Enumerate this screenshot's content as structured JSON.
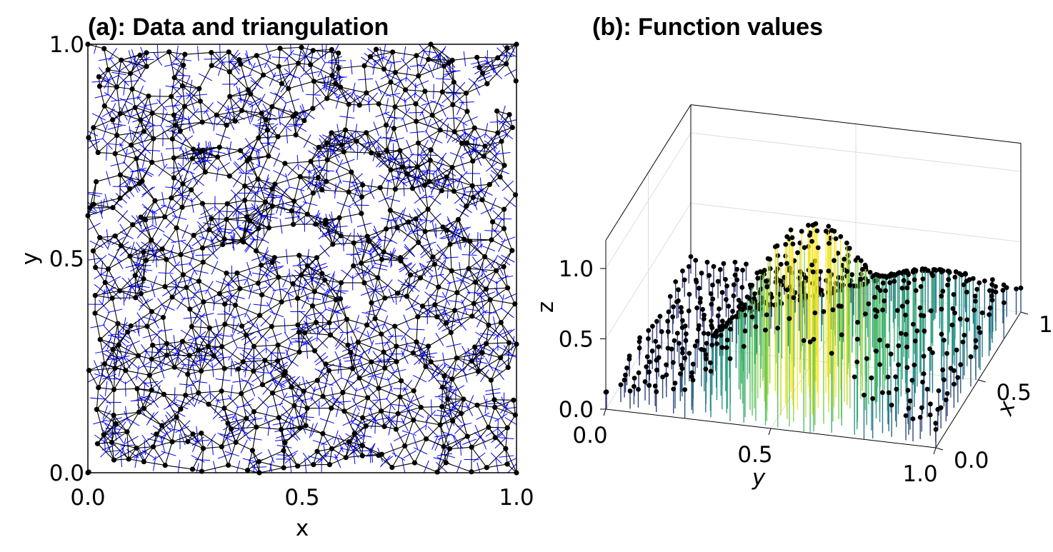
{
  "chart_data": [
    {
      "type": "scatter",
      "title": "(a): Data and triangulation",
      "xlabel": "x",
      "ylabel": "y",
      "xlim": [
        0.0,
        1.0
      ],
      "ylim": [
        0.0,
        1.0
      ],
      "xticks": [
        "0.0",
        "0.5",
        "1.0"
      ],
      "yticks": [
        "0.0",
        "0.5",
        "1.0"
      ],
      "grid": false,
      "series": [
        {
          "style": "points with Delaunay triangulation edges",
          "point_color": "#000000",
          "edge_color": "#000000"
        },
        {
          "style": "Voronoi tessellation edges",
          "edge_color": "#0000ff"
        }
      ],
      "note_points": "about 600 scattered points uniformly covering the unit square"
    },
    {
      "type": "scatter",
      "title": "(b): Function values",
      "xlabel": "x",
      "ylabel": "y",
      "zlabel": "z",
      "xlim": [
        0.0,
        1.0
      ],
      "ylim": [
        0.0,
        1.0
      ],
      "zlim": [
        0.0,
        1.2
      ],
      "xticks": [
        "0.0",
        "0.5",
        "1.0"
      ],
      "yticks": [
        "0.0",
        "0.5",
        "1.0"
      ],
      "zticks": [
        "0.0",
        "0.5",
        "1.0"
      ],
      "grid": true,
      "colormap": [
        "#3b0f70",
        "#21908c",
        "#5ec962",
        "#fde725"
      ],
      "series": [
        {
          "style": "3D stem plot, point markers black, stems coloured by height",
          "peak_z": 1.12,
          "peak_location": [
            0.25,
            0.55
          ]
        }
      ]
    }
  ]
}
